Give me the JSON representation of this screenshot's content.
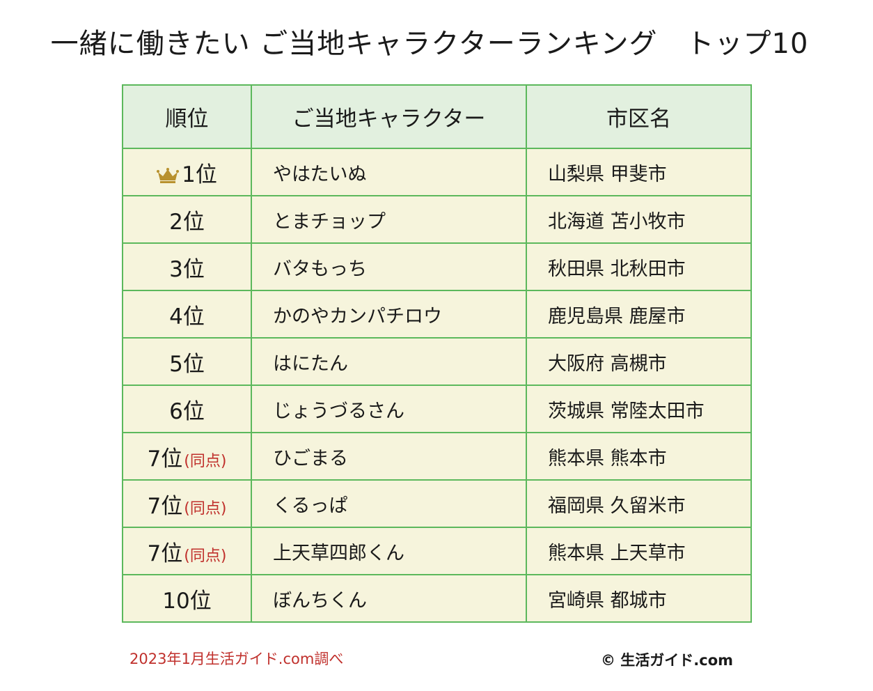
{
  "title": "一緒に働きたい ご当地キャラクターランキング　トップ10",
  "headers": {
    "rank": "順位",
    "character": "ご当地キャラクター",
    "city": "市区名"
  },
  "rows": [
    {
      "rank": "1位",
      "tie": "",
      "character": "やはたいぬ",
      "city": "山梨県 甲斐市"
    },
    {
      "rank": "2位",
      "tie": "",
      "character": "とまチョップ",
      "city": "北海道 苫小牧市"
    },
    {
      "rank": "3位",
      "tie": "",
      "character": "バタもっち",
      "city": "秋田県 北秋田市"
    },
    {
      "rank": "4位",
      "tie": "",
      "character": "かのやカンパチロウ",
      "city": "鹿児島県 鹿屋市"
    },
    {
      "rank": "5位",
      "tie": "",
      "character": "はにたん",
      "city": "大阪府 高槻市"
    },
    {
      "rank": "6位",
      "tie": "",
      "character": "じょうづるさん",
      "city": "茨城県 常陸太田市"
    },
    {
      "rank": "7位",
      "tie": "(同点)",
      "character": "ひごまる",
      "city": "熊本県 熊本市"
    },
    {
      "rank": "7位",
      "tie": "(同点)",
      "character": "くるっぱ",
      "city": "福岡県 久留米市"
    },
    {
      "rank": "7位",
      "tie": "(同点)",
      "character": "上天草四郎くん",
      "city": "熊本県 上天草市"
    },
    {
      "rank": "10位",
      "tie": "",
      "character": "ぼんちくん",
      "city": "宮崎県 都城市"
    }
  ],
  "footer": {
    "source": "2023年1月生活ガイド.com調べ",
    "copyright": "© 生活ガイド.com"
  },
  "colors": {
    "border": "#5cb85c",
    "header_bg": "#e2f0df",
    "row_bg": "#f6f4dc",
    "tie_text": "#c0302c",
    "crown": "#b8912e"
  },
  "icons": {
    "first_place": "crown-icon"
  }
}
